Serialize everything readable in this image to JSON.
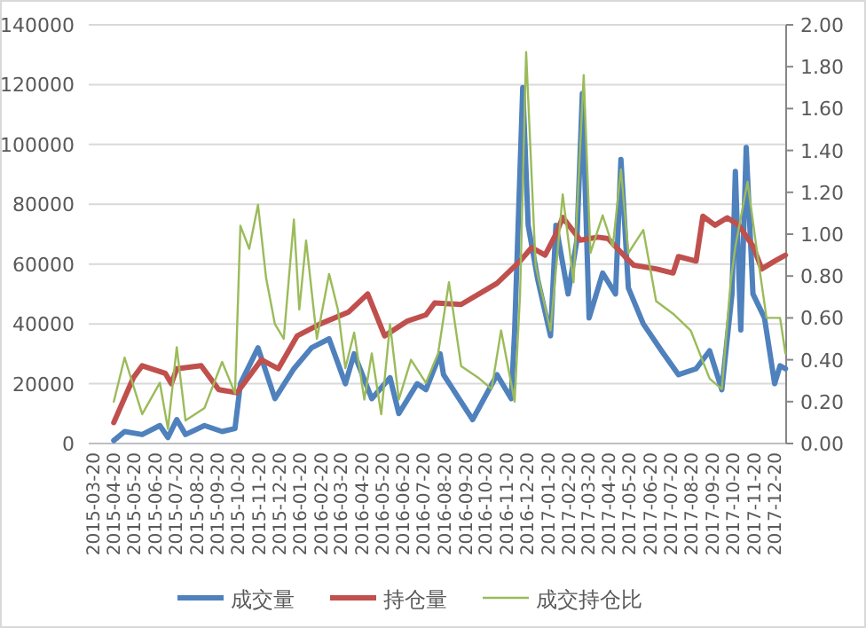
{
  "chart_data": {
    "type": "line",
    "grid": "y",
    "legend": "bottom",
    "xlim": [
      "2015-03-15",
      "2018-01-08"
    ],
    "xticks": [
      "2015-03-20",
      "2015-04-20",
      "2015-05-20",
      "2015-06-20",
      "2015-07-20",
      "2015-08-20",
      "2015-09-20",
      "2015-10-20",
      "2015-11-20",
      "2015-12-20",
      "2016-01-20",
      "2016-02-20",
      "2016-03-20",
      "2016-04-20",
      "2016-05-20",
      "2016-06-20",
      "2016-07-20",
      "2016-08-20",
      "2016-09-20",
      "2016-10-20",
      "2016-11-20",
      "2016-12-20",
      "2017-01-20",
      "2017-02-20",
      "2017-03-20",
      "2017-04-20",
      "2017-05-20",
      "2017-06-20",
      "2017-07-20",
      "2017-08-20",
      "2017-09-20",
      "2017-10-20",
      "2017-11-20",
      "2017-12-20"
    ],
    "ylim": [
      0,
      140000
    ],
    "yticks": [
      0,
      20000,
      40000,
      60000,
      80000,
      100000,
      120000,
      140000
    ],
    "y2lim": [
      0,
      2
    ],
    "y2ticks": [
      {
        "value": 0,
        "label": "0.00"
      },
      {
        "value": 0.2,
        "label": "0.20"
      },
      {
        "value": 0.4,
        "label": "0.40"
      },
      {
        "value": 0.6,
        "label": "0.60"
      },
      {
        "value": 0.8,
        "label": "0.80"
      },
      {
        "value": 1,
        "label": "1.00"
      },
      {
        "value": 1.2,
        "label": "1.20"
      },
      {
        "value": 1.4,
        "label": "1.40"
      },
      {
        "value": 1.6,
        "label": "1.60"
      },
      {
        "value": 1.8,
        "label": "1.80"
      },
      {
        "value": 2,
        "label": "2.00"
      }
    ],
    "series": [
      {
        "name": "成交量",
        "color": "#4f81bd",
        "x": [
          "2015-04-21",
          "2015-05-07",
          "2015-06-02",
          "2015-06-28",
          "2015-07-10",
          "2015-07-23",
          "2015-08-05",
          "2015-09-02",
          "2015-09-28",
          "2015-10-17",
          "2015-10-25",
          "2015-11-20",
          "2015-12-15",
          "2016-01-12",
          "2016-02-07",
          "2016-03-04",
          "2016-03-28",
          "2016-04-10",
          "2016-05-06",
          "2016-06-02",
          "2016-06-15",
          "2016-07-12",
          "2016-07-25",
          "2016-08-15",
          "2016-08-20",
          "2016-10-02",
          "2016-11-07",
          "2016-11-28",
          "2016-12-03",
          "2016-12-15",
          "2016-12-23",
          "2017-01-06",
          "2017-01-25",
          "2017-02-02",
          "2017-02-20",
          "2017-03-05",
          "2017-03-13",
          "2017-03-23",
          "2017-04-12",
          "2017-05-01",
          "2017-05-09",
          "2017-05-20",
          "2017-06-11",
          "2017-07-08",
          "2017-08-02",
          "2017-08-28",
          "2017-09-17",
          "2017-10-05",
          "2017-10-20",
          "2017-10-25",
          "2017-11-02",
          "2017-11-10",
          "2017-11-20",
          "2017-12-07",
          "2017-12-22",
          "2017-12-30",
          "2018-01-07"
        ],
        "values": [
          1000,
          4000,
          3000,
          6000,
          2000,
          8000,
          3000,
          6000,
          4000,
          5000,
          20000,
          32000,
          15000,
          25000,
          32000,
          35000,
          20000,
          30000,
          15000,
          22000,
          10000,
          20000,
          18000,
          30000,
          23000,
          8000,
          23000,
          15000,
          37500,
          119000,
          73000,
          55000,
          36000,
          73000,
          50000,
          68000,
          117000,
          42000,
          57000,
          50000,
          95000,
          52000,
          40000,
          31000,
          23000,
          25000,
          31000,
          18000,
          50000,
          91000,
          38000,
          99000,
          50000,
          42000,
          20000,
          26000,
          25000
        ]
      },
      {
        "name": "持仓量",
        "color": "#c0504d",
        "x": [
          "2015-04-21",
          "2015-05-20",
          "2015-06-02",
          "2015-07-06",
          "2015-07-15",
          "2015-07-23",
          "2015-08-28",
          "2015-09-23",
          "2015-10-20",
          "2015-11-25",
          "2015-12-20",
          "2016-01-17",
          "2016-02-20",
          "2016-04-02",
          "2016-04-30",
          "2016-05-25",
          "2016-06-28",
          "2016-07-25",
          "2016-08-07",
          "2016-09-15",
          "2016-11-07",
          "2016-12-11",
          "2016-12-28",
          "2017-01-17",
          "2017-02-02",
          "2017-02-12",
          "2017-03-10",
          "2017-04-05",
          "2017-04-20",
          "2017-05-15",
          "2017-05-28",
          "2017-06-30",
          "2017-07-25",
          "2017-08-02",
          "2017-08-28",
          "2017-09-07",
          "2017-09-25",
          "2017-10-13",
          "2017-10-30",
          "2017-11-20",
          "2017-12-03",
          "2017-12-22",
          "2018-01-07"
        ],
        "values": [
          7000,
          22000,
          26000,
          23500,
          20000,
          25000,
          26000,
          18000,
          17000,
          28000,
          25000,
          36000,
          40000,
          44000,
          50000,
          36000,
          41000,
          43000,
          47000,
          46500,
          53600,
          61000,
          65500,
          63000,
          70000,
          75600,
          68000,
          69000,
          68500,
          62500,
          59600,
          58400,
          57000,
          62500,
          61000,
          76000,
          73000,
          75500,
          73000,
          66000,
          58400,
          61000,
          63000
        ]
      },
      {
        "name": "成交持仓比",
        "color": "#9bbb59",
        "axis": "y2",
        "x": [
          "2015-04-21",
          "2015-05-07",
          "2015-06-02",
          "2015-06-28",
          "2015-07-10",
          "2015-07-23",
          "2015-08-05",
          "2015-09-02",
          "2015-09-28",
          "2015-10-17",
          "2015-10-25",
          "2015-11-07",
          "2015-11-20",
          "2015-12-02",
          "2015-12-15",
          "2015-12-28",
          "2016-01-12",
          "2016-01-20",
          "2016-01-30",
          "2016-02-15",
          "2016-03-04",
          "2016-03-17",
          "2016-03-28",
          "2016-04-10",
          "2016-04-25",
          "2016-05-06",
          "2016-05-20",
          "2016-06-02",
          "2016-06-15",
          "2016-07-03",
          "2016-07-25",
          "2016-08-12",
          "2016-08-28",
          "2016-09-15",
          "2016-10-12",
          "2016-10-30",
          "2016-11-13",
          "2016-12-03",
          "2016-12-11",
          "2016-12-20",
          "2017-01-03",
          "2017-01-25",
          "2017-02-12",
          "2017-02-28",
          "2017-03-15",
          "2017-03-25",
          "2017-04-12",
          "2017-04-27",
          "2017-05-09",
          "2017-05-20",
          "2017-06-11",
          "2017-06-30",
          "2017-07-25",
          "2017-08-20",
          "2017-09-17",
          "2017-10-05",
          "2017-10-18",
          "2017-10-25",
          "2017-11-12",
          "2017-11-25",
          "2017-12-10",
          "2017-12-30",
          "2018-01-07"
        ],
        "values": [
          0.2,
          0.41,
          0.14,
          0.29,
          0.07,
          0.46,
          0.11,
          0.17,
          0.39,
          0.24,
          1.04,
          0.93,
          1.14,
          0.79,
          0.57,
          0.5,
          1.07,
          0.64,
          0.97,
          0.5,
          0.81,
          0.64,
          0.36,
          0.53,
          0.21,
          0.43,
          0.14,
          0.57,
          0.21,
          0.4,
          0.29,
          0.43,
          0.77,
          0.37,
          0.31,
          0.26,
          0.54,
          0.2,
          0.71,
          1.87,
          0.85,
          0.54,
          1.19,
          0.77,
          1.76,
          0.91,
          1.09,
          0.94,
          1.31,
          0.91,
          1.02,
          0.68,
          0.62,
          0.54,
          0.31,
          0.26,
          0.77,
          0.94,
          1.25,
          0.94,
          0.6,
          0.6,
          0.43
        ]
      }
    ]
  }
}
